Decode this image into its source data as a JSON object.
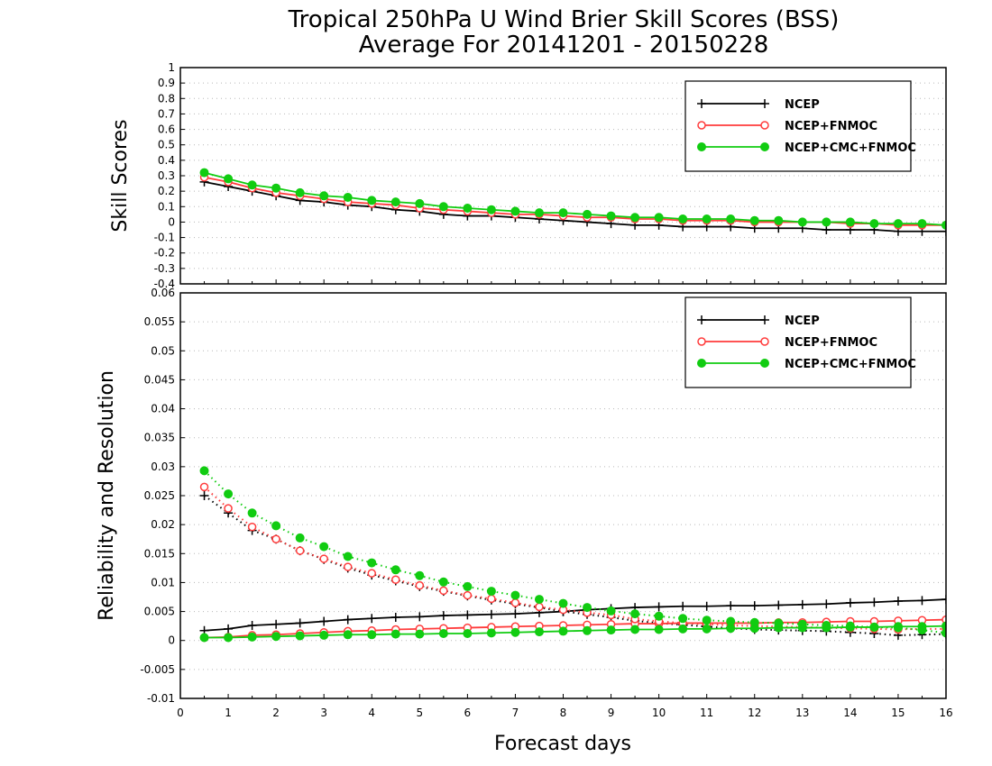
{
  "title_line1": "Tropical 250hPa U Wind Brier Skill Scores (BSS)",
  "title_line2": "Average For 20141201 - 20150228",
  "xlabel": "Forecast days",
  "colors": {
    "ncep": "#000000",
    "fnmoc": "#ff3b3b",
    "cmc": "#11cc11"
  },
  "chart_data": [
    {
      "type": "line",
      "title": "",
      "ylabel": "Skill Scores",
      "xlabel": "Forecast days",
      "xlim": [
        0,
        16
      ],
      "ylim": [
        -0.4,
        1
      ],
      "x_ticks": [
        0,
        1,
        2,
        3,
        4,
        5,
        6,
        7,
        8,
        9,
        10,
        11,
        12,
        13,
        14,
        15,
        16
      ],
      "y_ticks": [
        "1",
        "0.9",
        "0.8",
        "0.7",
        "0.6",
        "0.5",
        "0.4",
        "0.3",
        "0.2",
        "0.1",
        "0",
        "-0.1",
        "-0.2",
        "-0.3",
        "-0.4"
      ],
      "grid": true,
      "legend": "top-right",
      "x": [
        0.5,
        1,
        1.5,
        2,
        2.5,
        3,
        3.5,
        4,
        4.5,
        5,
        5.5,
        6,
        6.5,
        7,
        7.5,
        8,
        8.5,
        9,
        9.5,
        10,
        10.5,
        11,
        11.5,
        12,
        12.5,
        13,
        13.5,
        14,
        14.5,
        15,
        15.5,
        16
      ],
      "series": [
        {
          "name": "NCEP",
          "style": "solid",
          "marker": "plus",
          "values": [
            0.26,
            0.23,
            0.2,
            0.17,
            0.14,
            0.13,
            0.11,
            0.1,
            0.08,
            0.07,
            0.05,
            0.04,
            0.04,
            0.03,
            0.02,
            0.01,
            0.0,
            -0.01,
            -0.02,
            -0.02,
            -0.03,
            -0.03,
            -0.03,
            -0.04,
            -0.04,
            -0.04,
            -0.05,
            -0.05,
            -0.05,
            -0.06,
            -0.06,
            -0.06
          ]
        },
        {
          "name": "NCEP+FNMOC",
          "style": "solid",
          "marker": "open-circle",
          "values": [
            0.29,
            0.26,
            0.22,
            0.19,
            0.17,
            0.15,
            0.13,
            0.12,
            0.11,
            0.09,
            0.08,
            0.07,
            0.06,
            0.05,
            0.05,
            0.04,
            0.03,
            0.03,
            0.02,
            0.02,
            0.01,
            0.01,
            0.01,
            0.0,
            0.0,
            0.0,
            0.0,
            -0.01,
            -0.01,
            -0.02,
            -0.02,
            -0.02
          ]
        },
        {
          "name": "NCEP+CMC+FNMOC",
          "style": "solid",
          "marker": "filled-circle",
          "values": [
            0.32,
            0.28,
            0.24,
            0.22,
            0.19,
            0.17,
            0.16,
            0.14,
            0.13,
            0.12,
            0.1,
            0.09,
            0.08,
            0.07,
            0.06,
            0.06,
            0.05,
            0.04,
            0.03,
            0.03,
            0.02,
            0.02,
            0.02,
            0.01,
            0.01,
            0.0,
            0.0,
            0.0,
            -0.01,
            -0.01,
            -0.01,
            -0.02
          ]
        }
      ]
    },
    {
      "type": "line",
      "title": "",
      "ylabel": "Reliability and Resolution",
      "xlabel": "Forecast days",
      "xlim": [
        0,
        16
      ],
      "ylim": [
        -0.01,
        0.06
      ],
      "x_ticks": [
        0,
        1,
        2,
        3,
        4,
        5,
        6,
        7,
        8,
        9,
        10,
        11,
        12,
        13,
        14,
        15,
        16
      ],
      "y_ticks": [
        "0.06",
        "0.055",
        "0.05",
        "0.045",
        "0.04",
        "0.035",
        "0.03",
        "0.025",
        "0.02",
        "0.015",
        "0.01",
        "0.005",
        "0",
        "-0.005",
        "-0.01"
      ],
      "grid": true,
      "legend": "top-right",
      "x": [
        0.5,
        1,
        1.5,
        2,
        2.5,
        3,
        3.5,
        4,
        4.5,
        5,
        5.5,
        6,
        6.5,
        7,
        7.5,
        8,
        8.5,
        9,
        9.5,
        10,
        10.5,
        11,
        11.5,
        12,
        12.5,
        13,
        13.5,
        14,
        14.5,
        15,
        15.5,
        16
      ],
      "series": [
        {
          "name": "NCEP",
          "group": "reliability",
          "style": "solid",
          "marker": "plus",
          "values": [
            0.0017,
            0.002,
            0.0026,
            0.0028,
            0.003,
            0.0033,
            0.0036,
            0.0038,
            0.004,
            0.0041,
            0.0043,
            0.0044,
            0.0045,
            0.0046,
            0.0048,
            0.005,
            0.0053,
            0.0055,
            0.0057,
            0.0058,
            0.0059,
            0.0059,
            0.006,
            0.006,
            0.0061,
            0.0062,
            0.0063,
            0.0065,
            0.0066,
            0.0068,
            0.0069,
            0.0071
          ]
        },
        {
          "name": "NCEP",
          "group": "resolution",
          "style": "dotted",
          "marker": "plus",
          "values": [
            0.025,
            0.022,
            0.019,
            0.0175,
            0.0155,
            0.014,
            0.0125,
            0.0113,
            0.0103,
            0.0093,
            0.0085,
            0.0077,
            0.007,
            0.0063,
            0.0057,
            0.005,
            0.0045,
            0.004,
            0.0034,
            0.003,
            0.0027,
            0.0024,
            0.0021,
            0.0019,
            0.0018,
            0.0017,
            0.0016,
            0.0014,
            0.0012,
            0.0009,
            0.001,
            0.0011
          ]
        },
        {
          "name": "NCEP+FNMOC",
          "group": "reliability",
          "style": "solid",
          "marker": "open-circle",
          "values": [
            0.0005,
            0.0006,
            0.0009,
            0.001,
            0.0012,
            0.0014,
            0.0016,
            0.0017,
            0.0019,
            0.002,
            0.0021,
            0.0022,
            0.0023,
            0.0024,
            0.0025,
            0.0026,
            0.0027,
            0.0028,
            0.0029,
            0.0029,
            0.003,
            0.003,
            0.003,
            0.003,
            0.0031,
            0.0031,
            0.0032,
            0.0033,
            0.0033,
            0.0034,
            0.0035,
            0.0036
          ]
        },
        {
          "name": "NCEP+FNMOC",
          "group": "resolution",
          "style": "dotted",
          "marker": "open-circle",
          "values": [
            0.0265,
            0.0228,
            0.0196,
            0.0175,
            0.0155,
            0.0141,
            0.0127,
            0.0116,
            0.0105,
            0.0095,
            0.0086,
            0.0078,
            0.0072,
            0.0065,
            0.0058,
            0.0053,
            0.0048,
            0.0044,
            0.0037,
            0.0033,
            0.003,
            0.0028,
            0.0026,
            0.0025,
            0.0024,
            0.0023,
            0.0022,
            0.0021,
            0.002,
            0.0019,
            0.002,
            0.002
          ]
        },
        {
          "name": "NCEP+CMC+FNMOC",
          "group": "reliability",
          "style": "solid",
          "marker": "filled-circle",
          "values": [
            0.0005,
            0.0005,
            0.0006,
            0.0007,
            0.0008,
            0.0009,
            0.001,
            0.001,
            0.0011,
            0.0011,
            0.0012,
            0.0012,
            0.0013,
            0.0014,
            0.0015,
            0.0016,
            0.0017,
            0.0018,
            0.0019,
            0.0019,
            0.002,
            0.002,
            0.0021,
            0.0021,
            0.0022,
            0.0022,
            0.0022,
            0.0023,
            0.0023,
            0.0024,
            0.0024,
            0.0025
          ]
        },
        {
          "name": "NCEP+CMC+FNMOC",
          "group": "resolution",
          "style": "dotted",
          "marker": "filled-circle",
          "values": [
            0.0293,
            0.0253,
            0.022,
            0.0198,
            0.0177,
            0.0162,
            0.0145,
            0.0134,
            0.0122,
            0.0112,
            0.0101,
            0.0093,
            0.0085,
            0.0078,
            0.0071,
            0.0064,
            0.0057,
            0.0051,
            0.0046,
            0.0042,
            0.0038,
            0.0035,
            0.0033,
            0.0031,
            0.003,
            0.0028,
            0.0026,
            0.0025,
            0.0023,
            0.0022,
            0.0018,
            0.0013
          ]
        }
      ]
    }
  ]
}
